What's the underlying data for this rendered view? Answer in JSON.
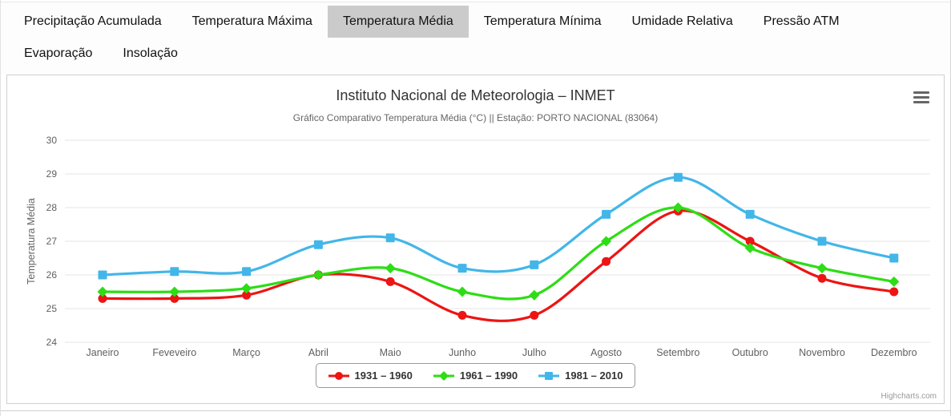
{
  "tabs": {
    "row1": [
      {
        "id": "precipitacao-acumulada",
        "label": "Precipitação Acumulada",
        "active": false
      },
      {
        "id": "temperatura-maxima",
        "label": "Temperatura Máxima",
        "active": false
      },
      {
        "id": "temperatura-media",
        "label": "Temperatura Média",
        "active": true
      },
      {
        "id": "temperatura-minima",
        "label": "Temperatura Mínima",
        "active": false
      },
      {
        "id": "umidade-relativa",
        "label": "Umidade Relativa",
        "active": false
      },
      {
        "id": "pressao-atm",
        "label": "Pressão ATM",
        "active": false
      }
    ],
    "row2": [
      {
        "id": "evaporacao",
        "label": "Evaporação",
        "active": false
      },
      {
        "id": "insolacao",
        "label": "Insolação",
        "active": false
      }
    ]
  },
  "chart": {
    "title": "Instituto Nacional de Meteorologia – INMET",
    "subtitle": "Gráfico Comparativo Temperatura Média (°C) || Estação: PORTO NACIONAL (83064)",
    "credit": "Highcharts.com",
    "menu_icon": "hamburger-icon"
  },
  "chart_data": {
    "type": "line",
    "title": "Instituto Nacional de Meteorologia – INMET",
    "subtitle": "Gráfico Comparativo Temperatura Média (°C) || Estação: PORTO NACIONAL (83064)",
    "categories": [
      "Janeiro",
      "Feveveiro",
      "Março",
      "Abril",
      "Maio",
      "Junho",
      "Julho",
      "Agosto",
      "Setembro",
      "Outubro",
      "Novembro",
      "Dezembro"
    ],
    "xlabel": "",
    "ylabel": "Temperatura Média",
    "ylim": [
      24,
      30
    ],
    "yticks": [
      24,
      25,
      26,
      27,
      28,
      29,
      30
    ],
    "grid": true,
    "legend_position": "bottom",
    "colors": {
      "grid": "#e6e6e6",
      "axis_text": "#606060",
      "title": "#333333",
      "subtitle": "#666666"
    },
    "series": [
      {
        "name": "1931 – 1960",
        "color": "#ed1414",
        "marker": "circle",
        "values": [
          25.3,
          25.3,
          25.4,
          26.0,
          25.8,
          24.8,
          24.8,
          26.4,
          27.9,
          27.0,
          25.9,
          25.5
        ]
      },
      {
        "name": "1961 – 1990",
        "color": "#2ddd15",
        "marker": "diamond",
        "values": [
          25.5,
          25.5,
          25.6,
          26.0,
          26.2,
          25.5,
          25.4,
          27.0,
          28.0,
          26.8,
          26.2,
          25.8
        ]
      },
      {
        "name": "1981 – 2010",
        "color": "#42b6e8",
        "marker": "square",
        "values": [
          26.0,
          26.1,
          26.1,
          26.9,
          27.1,
          26.2,
          26.3,
          27.8,
          28.9,
          27.8,
          27.0,
          26.5
        ]
      }
    ]
  }
}
